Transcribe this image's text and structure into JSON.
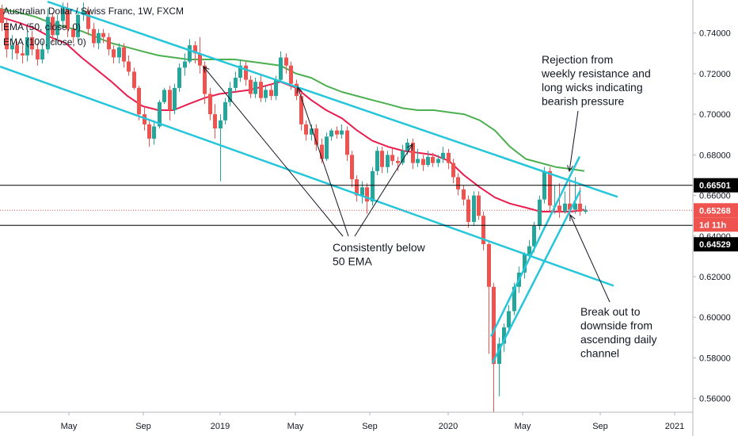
{
  "legend": {
    "title": "Australian Dollar / Swiss Franc, 1W, FXCM",
    "ema50": "EMA (50, close, 0)",
    "ema100": "EMA (100, close, 0)"
  },
  "badges": {
    "resistance": "0.66501",
    "current_price": "0.65268",
    "countdown": "1d 11h",
    "support": "0.64529"
  },
  "annotations": {
    "rejection": [
      "Rejection from",
      "weekly resistance and",
      "long wicks indicating",
      "bearish pressure"
    ],
    "below_ema": [
      "Consistently below",
      "50 EMA"
    ],
    "breakout": [
      "Break out to",
      "downside from",
      "ascending daily",
      "channel"
    ]
  },
  "colors": {
    "bull": "#26a69a",
    "bear": "#ef5350",
    "ema50": "#e91e4f",
    "ema100": "#4caf50",
    "channel": "#26c6da",
    "resistance_line": "#000000",
    "current_badge": "#ef5350",
    "support_badge": "#000000"
  },
  "chart_data": {
    "type": "candlestick",
    "title": "Australian Dollar / Swiss Franc, 1W, FXCM",
    "x_ticks": [
      "May",
      "Sep",
      "2019",
      "May",
      "Sep",
      "2020",
      "May",
      "Sep",
      "2021"
    ],
    "y_ticks": [
      "0.74000",
      "0.72000",
      "0.70000",
      "0.68000",
      "0.66000",
      "0.64000",
      "0.62000",
      "0.60000",
      "0.58000",
      "0.56000"
    ],
    "ylim": [
      0.5532,
      0.7563
    ],
    "grid": false,
    "horizontal_levels": [
      0.66501,
      0.64529
    ],
    "current_price": 0.65268,
    "ema50_points": [
      [
        0,
        0.748
      ],
      [
        25,
        0.745
      ],
      [
        45,
        0.742
      ],
      [
        64,
        0.738
      ],
      [
        83,
        0.735
      ],
      [
        103,
        0.728
      ],
      [
        122,
        0.722
      ],
      [
        141,
        0.716
      ],
      [
        161,
        0.709
      ],
      [
        180,
        0.704
      ],
      [
        200,
        0.702
      ],
      [
        219,
        0.702
      ],
      [
        238,
        0.705
      ],
      [
        258,
        0.708
      ],
      [
        277,
        0.71
      ],
      [
        296,
        0.711
      ],
      [
        316,
        0.712
      ],
      [
        335,
        0.714
      ],
      [
        354,
        0.716
      ],
      [
        374,
        0.713
      ],
      [
        393,
        0.707
      ],
      [
        412,
        0.702
      ],
      [
        432,
        0.698
      ],
      [
        451,
        0.692
      ],
      [
        470,
        0.687
      ],
      [
        490,
        0.684
      ],
      [
        509,
        0.682
      ],
      [
        528,
        0.681
      ],
      [
        548,
        0.68
      ],
      [
        567,
        0.677
      ],
      [
        586,
        0.67
      ],
      [
        606,
        0.664
      ],
      [
        625,
        0.659
      ],
      [
        644,
        0.656
      ],
      [
        664,
        0.654
      ],
      [
        683,
        0.652
      ],
      [
        702,
        0.652
      ],
      [
        721,
        0.652
      ],
      [
        738,
        0.653
      ]
    ],
    "ema100_points": [
      [
        0,
        0.752
      ],
      [
        25,
        0.75
      ],
      [
        45,
        0.748
      ],
      [
        64,
        0.745
      ],
      [
        83,
        0.743
      ],
      [
        103,
        0.741
      ],
      [
        122,
        0.738
      ],
      [
        141,
        0.735
      ],
      [
        161,
        0.733
      ],
      [
        180,
        0.731
      ],
      [
        200,
        0.729
      ],
      [
        219,
        0.728
      ],
      [
        238,
        0.727
      ],
      [
        258,
        0.727
      ],
      [
        277,
        0.727
      ],
      [
        296,
        0.727
      ],
      [
        316,
        0.726
      ],
      [
        335,
        0.725
      ],
      [
        354,
        0.724
      ],
      [
        374,
        0.72
      ],
      [
        393,
        0.718
      ],
      [
        412,
        0.714
      ],
      [
        432,
        0.711
      ],
      [
        451,
        0.709
      ],
      [
        470,
        0.707
      ],
      [
        490,
        0.705
      ],
      [
        509,
        0.703
      ],
      [
        528,
        0.702
      ],
      [
        548,
        0.702
      ],
      [
        567,
        0.701
      ],
      [
        586,
        0.7
      ],
      [
        606,
        0.697
      ],
      [
        625,
        0.692
      ],
      [
        644,
        0.684
      ],
      [
        664,
        0.678
      ],
      [
        683,
        0.676
      ],
      [
        702,
        0.674
      ],
      [
        721,
        0.673
      ],
      [
        738,
        0.672
      ]
    ],
    "candles": [
      [
        0,
        0.752,
        0.745,
        0.754,
        0.741
      ],
      [
        6,
        0.745,
        0.732,
        0.747,
        0.728
      ],
      [
        13,
        0.732,
        0.734,
        0.739,
        0.727
      ],
      [
        19,
        0.734,
        0.73,
        0.736,
        0.727
      ],
      [
        26,
        0.73,
        0.729,
        0.734,
        0.725
      ],
      [
        32,
        0.729,
        0.738,
        0.741,
        0.726
      ],
      [
        38,
        0.738,
        0.732,
        0.741,
        0.729
      ],
      [
        45,
        0.732,
        0.727,
        0.735,
        0.724
      ],
      [
        51,
        0.727,
        0.732,
        0.736,
        0.725
      ],
      [
        58,
        0.732,
        0.748,
        0.752,
        0.73
      ],
      [
        64,
        0.748,
        0.739,
        0.75,
        0.735
      ],
      [
        70,
        0.739,
        0.746,
        0.749,
        0.736
      ],
      [
        77,
        0.746,
        0.752,
        0.755,
        0.743
      ],
      [
        83,
        0.752,
        0.742,
        0.755,
        0.738
      ],
      [
        90,
        0.742,
        0.738,
        0.744,
        0.735
      ],
      [
        96,
        0.738,
        0.749,
        0.751,
        0.736
      ],
      [
        103,
        0.749,
        0.751,
        0.755,
        0.746
      ],
      [
        109,
        0.751,
        0.742,
        0.753,
        0.739
      ],
      [
        116,
        0.742,
        0.735,
        0.745,
        0.733
      ],
      [
        122,
        0.735,
        0.74,
        0.742,
        0.732
      ],
      [
        128,
        0.74,
        0.738,
        0.742,
        0.735
      ],
      [
        135,
        0.738,
        0.732,
        0.74,
        0.729
      ],
      [
        141,
        0.732,
        0.728,
        0.734,
        0.725
      ],
      [
        148,
        0.728,
        0.733,
        0.735,
        0.725
      ],
      [
        154,
        0.733,
        0.726,
        0.735,
        0.723
      ],
      [
        160,
        0.726,
        0.721,
        0.729,
        0.719
      ],
      [
        167,
        0.721,
        0.713,
        0.723,
        0.712
      ],
      [
        173,
        0.713,
        0.7,
        0.714,
        0.697
      ],
      [
        180,
        0.7,
        0.695,
        0.704,
        0.692
      ],
      [
        186,
        0.695,
        0.688,
        0.697,
        0.684
      ],
      [
        192,
        0.688,
        0.694,
        0.697,
        0.685
      ],
      [
        199,
        0.694,
        0.706,
        0.707,
        0.693
      ],
      [
        205,
        0.706,
        0.712,
        0.713,
        0.705
      ],
      [
        212,
        0.712,
        0.702,
        0.714,
        0.697
      ],
      [
        218,
        0.702,
        0.713,
        0.715,
        0.7
      ],
      [
        224,
        0.713,
        0.723,
        0.725,
        0.711
      ],
      [
        231,
        0.723,
        0.726,
        0.73,
        0.719
      ],
      [
        237,
        0.726,
        0.734,
        0.737,
        0.725
      ],
      [
        244,
        0.734,
        0.73,
        0.736,
        0.725
      ],
      [
        250,
        0.73,
        0.724,
        0.738,
        0.72
      ],
      [
        256,
        0.724,
        0.71,
        0.726,
        0.705
      ],
      [
        263,
        0.71,
        0.7,
        0.713,
        0.697
      ],
      [
        269,
        0.7,
        0.693,
        0.705,
        0.688
      ],
      [
        276,
        0.693,
        0.697,
        0.7,
        0.667
      ],
      [
        282,
        0.697,
        0.706,
        0.708,
        0.695
      ],
      [
        288,
        0.706,
        0.713,
        0.716,
        0.704
      ],
      [
        295,
        0.713,
        0.718,
        0.721,
        0.711
      ],
      [
        301,
        0.718,
        0.724,
        0.727,
        0.716
      ],
      [
        308,
        0.724,
        0.717,
        0.726,
        0.714
      ],
      [
        314,
        0.717,
        0.71,
        0.719,
        0.708
      ],
      [
        320,
        0.71,
        0.716,
        0.718,
        0.708
      ],
      [
        327,
        0.716,
        0.708,
        0.719,
        0.706
      ],
      [
        333,
        0.708,
        0.712,
        0.714,
        0.706
      ],
      [
        340,
        0.712,
        0.709,
        0.715,
        0.707
      ],
      [
        346,
        0.709,
        0.717,
        0.719,
        0.707
      ],
      [
        352,
        0.717,
        0.728,
        0.731,
        0.716
      ],
      [
        359,
        0.728,
        0.724,
        0.73,
        0.72
      ],
      [
        365,
        0.724,
        0.715,
        0.726,
        0.712
      ],
      [
        372,
        0.715,
        0.709,
        0.717,
        0.707
      ],
      [
        378,
        0.709,
        0.695,
        0.711,
        0.692
      ],
      [
        384,
        0.695,
        0.69,
        0.697,
        0.687
      ],
      [
        391,
        0.69,
        0.693,
        0.695,
        0.687
      ],
      [
        397,
        0.693,
        0.685,
        0.695,
        0.682
      ],
      [
        404,
        0.685,
        0.678,
        0.688,
        0.676
      ],
      [
        410,
        0.678,
        0.689,
        0.691,
        0.677
      ],
      [
        416,
        0.689,
        0.692,
        0.693,
        0.687
      ],
      [
        423,
        0.692,
        0.69,
        0.694,
        0.688
      ],
      [
        429,
        0.69,
        0.692,
        0.695,
        0.688
      ],
      [
        436,
        0.692,
        0.68,
        0.694,
        0.677
      ],
      [
        442,
        0.68,
        0.668,
        0.682,
        0.664
      ],
      [
        448,
        0.668,
        0.66,
        0.67,
        0.657
      ],
      [
        455,
        0.66,
        0.664,
        0.667,
        0.656
      ],
      [
        461,
        0.664,
        0.657,
        0.666,
        0.651
      ],
      [
        468,
        0.657,
        0.672,
        0.674,
        0.655
      ],
      [
        474,
        0.672,
        0.682,
        0.684,
        0.67
      ],
      [
        480,
        0.682,
        0.674,
        0.684,
        0.671
      ],
      [
        487,
        0.674,
        0.68,
        0.682,
        0.671
      ],
      [
        493,
        0.68,
        0.677,
        0.683,
        0.675
      ],
      [
        500,
        0.677,
        0.676,
        0.679,
        0.672
      ],
      [
        506,
        0.676,
        0.682,
        0.685,
        0.675
      ],
      [
        512,
        0.682,
        0.686,
        0.688,
        0.68
      ],
      [
        519,
        0.686,
        0.676,
        0.688,
        0.673
      ],
      [
        525,
        0.676,
        0.678,
        0.683,
        0.674
      ],
      [
        532,
        0.678,
        0.675,
        0.68,
        0.672
      ],
      [
        538,
        0.675,
        0.679,
        0.682,
        0.674
      ],
      [
        544,
        0.679,
        0.676,
        0.681,
        0.674
      ],
      [
        551,
        0.676,
        0.678,
        0.68,
        0.674
      ],
      [
        557,
        0.678,
        0.681,
        0.684,
        0.676
      ],
      [
        564,
        0.681,
        0.676,
        0.683,
        0.673
      ],
      [
        570,
        0.676,
        0.669,
        0.678,
        0.666
      ],
      [
        576,
        0.669,
        0.663,
        0.671,
        0.66
      ],
      [
        583,
        0.663,
        0.658,
        0.665,
        0.655
      ],
      [
        589,
        0.658,
        0.647,
        0.66,
        0.644
      ],
      [
        596,
        0.647,
        0.66,
        0.662,
        0.645
      ],
      [
        602,
        0.66,
        0.65,
        0.662,
        0.648
      ],
      [
        608,
        0.65,
        0.636,
        0.652,
        0.633
      ],
      [
        615,
        0.636,
        0.615,
        0.638,
        0.582
      ],
      [
        621,
        0.615,
        0.577,
        0.617,
        0.553
      ],
      [
        628,
        0.577,
        0.587,
        0.59,
        0.561
      ],
      [
        634,
        0.587,
        0.595,
        0.597,
        0.583
      ],
      [
        640,
        0.595,
        0.603,
        0.606,
        0.592
      ],
      [
        647,
        0.603,
        0.615,
        0.617,
        0.601
      ],
      [
        653,
        0.615,
        0.622,
        0.625,
        0.612
      ],
      [
        660,
        0.622,
        0.631,
        0.632,
        0.619
      ],
      [
        666,
        0.631,
        0.635,
        0.638,
        0.628
      ],
      [
        672,
        0.635,
        0.645,
        0.647,
        0.632
      ],
      [
        679,
        0.645,
        0.658,
        0.66,
        0.643
      ],
      [
        685,
        0.658,
        0.672,
        0.674,
        0.656
      ],
      [
        692,
        0.672,
        0.655,
        0.674,
        0.652
      ],
      [
        698,
        0.655,
        0.655,
        0.665,
        0.651
      ],
      [
        704,
        0.655,
        0.652,
        0.666,
        0.649
      ],
      [
        711,
        0.652,
        0.656,
        0.662,
        0.651
      ],
      [
        717,
        0.656,
        0.653,
        0.667,
        0.65
      ],
      [
        724,
        0.653,
        0.656,
        0.669,
        0.651
      ],
      [
        730,
        0.656,
        0.652,
        0.664,
        0.65
      ],
      [
        737,
        0.652,
        0.653,
        0.655,
        0.651
      ]
    ]
  }
}
